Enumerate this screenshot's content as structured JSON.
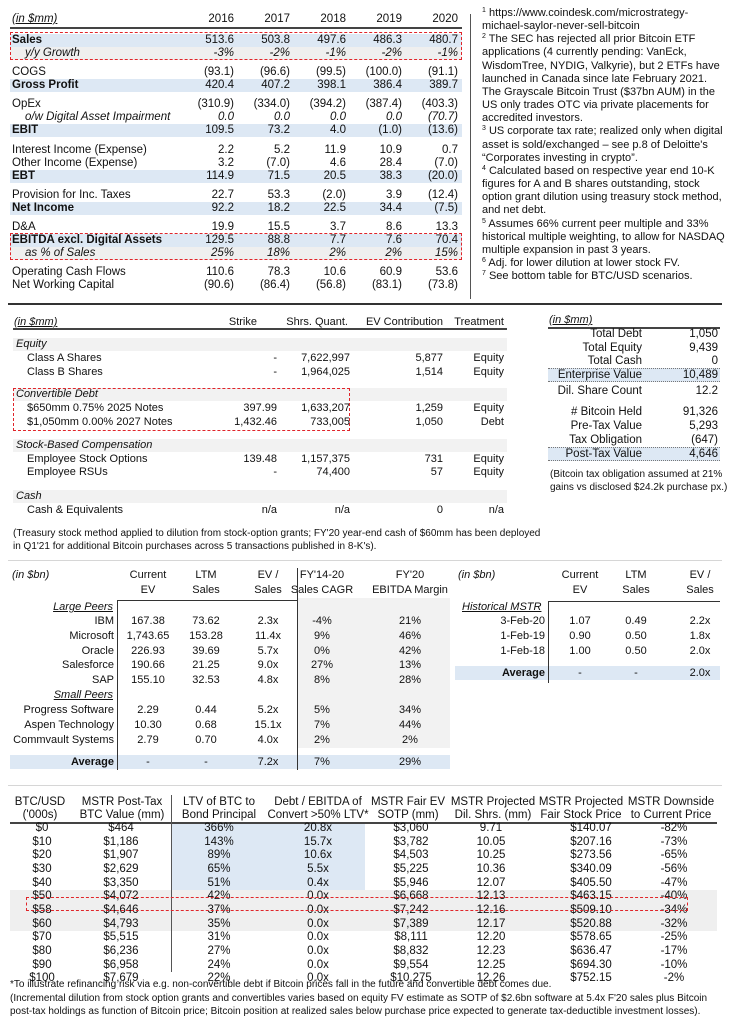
{
  "colors": {
    "highlight_box": "#e0252a",
    "blue_band": "#dde8f4",
    "grey_band": "#efefef"
  },
  "income": {
    "unit": "(in $mm)",
    "years": [
      "2016",
      "2017",
      "2018",
      "2019",
      "2020"
    ],
    "rows": [
      {
        "label": "Sales",
        "values": [
          "513.6",
          "503.8",
          "497.6",
          "486.3",
          "480.7"
        ]
      },
      {
        "label": "y/y Growth",
        "values": [
          "-3%",
          "-2%",
          "-1%",
          "-2%",
          "-1%"
        ]
      },
      {
        "label": "COGS",
        "values": [
          "(93.1)",
          "(96.6)",
          "(99.5)",
          "(100.0)",
          "(91.1)"
        ]
      },
      {
        "label": "Gross Profit",
        "values": [
          "420.4",
          "407.2",
          "398.1",
          "386.4",
          "389.7"
        ]
      },
      {
        "label": "OpEx",
        "values": [
          "(310.9)",
          "(334.0)",
          "(394.2)",
          "(387.4)",
          "(403.3)"
        ]
      },
      {
        "label": "o/w Digital Asset Impairment",
        "values": [
          "0.0",
          "0.0",
          "0.0",
          "0.0",
          "(70.7)"
        ]
      },
      {
        "label": "EBIT",
        "values": [
          "109.5",
          "73.2",
          "4.0",
          "(1.0)",
          "(13.6)"
        ]
      },
      {
        "label": "Interest Income (Expense)",
        "values": [
          "2.2",
          "5.2",
          "11.9",
          "10.9",
          "0.7"
        ]
      },
      {
        "label": "Other Income (Expense)",
        "values": [
          "3.2",
          "(7.0)",
          "4.6",
          "28.4",
          "(7.0)"
        ]
      },
      {
        "label": "EBT",
        "values": [
          "114.9",
          "71.5",
          "20.5",
          "38.3",
          "(20.0)"
        ]
      },
      {
        "label": "Provision for Inc. Taxes",
        "values": [
          "22.7",
          "53.3",
          "(2.0)",
          "3.9",
          "(12.4)"
        ]
      },
      {
        "label": "Net Income",
        "values": [
          "92.2",
          "18.2",
          "22.5",
          "34.4",
          "(7.5)"
        ]
      },
      {
        "label": "D&A",
        "values": [
          "19.9",
          "15.5",
          "3.7",
          "8.6",
          "13.3"
        ]
      },
      {
        "label": "EBITDA excl. Digital Assets",
        "values": [
          "129.5",
          "88.8",
          "7.7",
          "7.6",
          "70.4"
        ]
      },
      {
        "label": "as % of Sales",
        "values": [
          "25%",
          "18%",
          "2%",
          "2%",
          "15%"
        ]
      },
      {
        "label": "Operating Cash Flows",
        "values": [
          "110.6",
          "78.3",
          "10.6",
          "60.9",
          "53.6"
        ]
      },
      {
        "label": "Net Working Capital",
        "values": [
          "(90.6)",
          "(86.4)",
          "(56.8)",
          "(83.1)",
          "(73.8)"
        ]
      }
    ]
  },
  "footnotes": [
    {
      "num": "1",
      "text": "https://www.coindesk.com/microstrategy-michael-saylor-never-sell-bitcoin"
    },
    {
      "num": "2",
      "text": "The SEC has rejected all prior Bitcoin ETF applications (4 currently pending: VanEck, WisdomTree, NYDIG, Valkyrie), but 2 ETFs have launched in Canada since late February 2021. The Grayscale Bitcoin Trust ($37bn AUM) in the US only trades OTC via private placements for accredited investors."
    },
    {
      "num": "3",
      "text": "US corporate tax rate; realized only when digital asset is sold/exchanged – see p.8 of Deloitte's “Corporates investing in crypto”."
    },
    {
      "num": "4",
      "text": "Calculated based on respective year end 10-K figures for A and B shares outstanding, stock option grant dilution using treasury stock method, and net debt."
    },
    {
      "num": "5",
      "text": "Assumes 66% current peer multiple and 33% historical multiple weighting, to allow for NASDAQ multiple expansion in past 3 years."
    },
    {
      "num": "6",
      "text": "Adj. for lower dilution at lower stock FV."
    },
    {
      "num": "7",
      "text": "See bottom table for BTC/USD scenarios."
    }
  ],
  "captable": {
    "unit": "(in $mm)",
    "headers": [
      "Strike",
      "Shrs. Quant.",
      "EV Contribution",
      "Treatment"
    ],
    "groups": [
      {
        "title": "Equity",
        "rows": [
          {
            "label": "Class A Shares",
            "values": [
              "-",
              "7,622,997",
              "5,877",
              "Equity"
            ]
          },
          {
            "label": "Class B Shares",
            "values": [
              "-",
              "1,964,025",
              "1,514",
              "Equity"
            ]
          }
        ]
      },
      {
        "title": "Convertible Debt",
        "rows": [
          {
            "label": "$650mm 0.75% 2025 Notes",
            "values": [
              "397.99",
              "1,633,207",
              "1,259",
              "Equity"
            ]
          },
          {
            "label": "$1,050mm 0.00% 2027 Notes",
            "values": [
              "1,432.46",
              "733,005",
              "1,050",
              "Debt"
            ]
          }
        ]
      },
      {
        "title": "Stock-Based Compensation",
        "rows": [
          {
            "label": "Employee Stock Options",
            "values": [
              "139.48",
              "1,157,375",
              "731",
              "Equity"
            ]
          },
          {
            "label": "Employee RSUs",
            "values": [
              "-",
              "74,400",
              "57",
              "Equity"
            ]
          }
        ]
      },
      {
        "title": "Cash",
        "rows": [
          {
            "label": "Cash & Equivalents",
            "values": [
              "n/a",
              "n/a",
              "0",
              "n/a"
            ]
          }
        ]
      }
    ],
    "note_lines": [
      "(Treasury stock method applied to dilution from stock-option grants; FY'20 year-end cash of $60mm has been deployed",
      "in Q1'21 for additional Bitcoin purchases across 5 transactions published in 8-K's)."
    ]
  },
  "ev_summary": {
    "unit": "(in $mm)",
    "rows": [
      {
        "label": "Total Debt",
        "value": "1,050"
      },
      {
        "label": "Total Equity",
        "value": "9,439"
      },
      {
        "label": "Total Cash",
        "value": "0"
      },
      {
        "label": "Enterprise Value",
        "value": "10,489"
      },
      {
        "label": "Dil. Share Count",
        "value": "12.2"
      },
      {
        "label": "# Bitcoin Held",
        "value": "91,326"
      },
      {
        "label": "Pre-Tax Value",
        "value": "5,293"
      },
      {
        "label": "Tax Obligation",
        "value": "(647)"
      },
      {
        "label": "Post-Tax Value",
        "value": "4,646"
      }
    ],
    "note_lines": [
      "(Bitcoin tax obligation assumed at 21%",
      "gains vs disclosed $24.2k purchase px.)"
    ]
  },
  "peers": {
    "unit": "(in $bn)",
    "headers": [
      [
        "Current",
        "EV"
      ],
      [
        "LTM",
        "Sales"
      ],
      [
        "EV /",
        "Sales"
      ],
      [
        "FY'14-20",
        "Sales CAGR"
      ],
      [
        "FY'20",
        "EBITDA Margin"
      ]
    ],
    "groups": [
      {
        "title": "Large Peers",
        "rows": [
          {
            "name": "IBM",
            "values": [
              "167.38",
              "73.62",
              "2.3x",
              "-4%",
              "21%"
            ]
          },
          {
            "name": "Microsoft",
            "values": [
              "1,743.65",
              "153.28",
              "11.4x",
              "9%",
              "46%"
            ]
          },
          {
            "name": "Oracle",
            "values": [
              "226.93",
              "39.69",
              "5.7x",
              "0%",
              "42%"
            ]
          },
          {
            "name": "Salesforce",
            "values": [
              "190.66",
              "21.25",
              "9.0x",
              "27%",
              "13%"
            ]
          },
          {
            "name": "SAP",
            "values": [
              "155.10",
              "32.53",
              "4.8x",
              "8%",
              "28%"
            ]
          }
        ]
      },
      {
        "title": "Small Peers",
        "rows": [
          {
            "name": "Progress Software",
            "values": [
              "2.29",
              "0.44",
              "5.2x",
              "5%",
              "34%"
            ]
          },
          {
            "name": "Aspen Technology",
            "values": [
              "10.30",
              "0.68",
              "15.1x",
              "7%",
              "44%"
            ]
          },
          {
            "name": "Commvault Systems",
            "values": [
              "2.79",
              "0.70",
              "4.0x",
              "2%",
              "2%"
            ]
          }
        ]
      }
    ],
    "average": {
      "label": "Average",
      "values": [
        "-",
        "-",
        "7.2x",
        "7%",
        "29%"
      ]
    }
  },
  "historical": {
    "unit": "(in $bn)",
    "headers": [
      [
        "Current",
        "EV"
      ],
      [
        "LTM",
        "Sales"
      ],
      [
        "EV /",
        "Sales"
      ]
    ],
    "title": "Historical MSTR",
    "rows": [
      {
        "name": "3-Feb-20",
        "values": [
          "1.07",
          "0.49",
          "2.2x"
        ]
      },
      {
        "name": "1-Feb-19",
        "values": [
          "0.90",
          "0.50",
          "1.8x"
        ]
      },
      {
        "name": "1-Feb-18",
        "values": [
          "1.00",
          "0.50",
          "2.0x"
        ]
      }
    ],
    "average": {
      "label": "Average",
      "values": [
        "-",
        "-",
        "2.0x"
      ]
    }
  },
  "scenarios": {
    "headers": [
      [
        "BTC/USD",
        "('000s)"
      ],
      [
        "MSTR Post-Tax",
        "BTC Value (mm)"
      ],
      [
        "LTV of BTC to",
        "Bond Principal"
      ],
      [
        "Debt / EBITDA of",
        "Convert >50% LTV*"
      ],
      [
        "MSTR Fair EV",
        "SOTP (mm)"
      ],
      [
        "MSTR Projected",
        "Dil. Shrs. (mm)"
      ],
      [
        "MSTR Projected",
        "Fair Stock Price"
      ],
      [
        "MSTR Downside",
        "to Current Price"
      ]
    ],
    "rows": [
      [
        "$0",
        "$464",
        "366%",
        "20.8x",
        "$3,060",
        "9.71",
        "$140.07",
        "-82%"
      ],
      [
        "$10",
        "$1,186",
        "143%",
        "15.7x",
        "$3,782",
        "10.05",
        "$207.16",
        "-73%"
      ],
      [
        "$20",
        "$1,907",
        "89%",
        "10.6x",
        "$4,503",
        "10.25",
        "$273.56",
        "-65%"
      ],
      [
        "$30",
        "$2,629",
        "65%",
        "5.5x",
        "$5,225",
        "10.36",
        "$340.09",
        "-56%"
      ],
      [
        "$40",
        "$3,350",
        "51%",
        "0.4x",
        "$5,946",
        "12.07",
        "$405.50",
        "-47%"
      ],
      [
        "$50",
        "$4,072",
        "42%",
        "0.0x",
        "$6,668",
        "12.13",
        "$463.15",
        "-40%"
      ],
      [
        "$58",
        "$4,646",
        "37%",
        "0.0x",
        "$7,242",
        "12.16",
        "$509.10",
        "-34%"
      ],
      [
        "$60",
        "$4,793",
        "35%",
        "0.0x",
        "$7,389",
        "12.17",
        "$520.88",
        "-32%"
      ],
      [
        "$70",
        "$5,515",
        "31%",
        "0.0x",
        "$8,111",
        "12.20",
        "$578.65",
        "-25%"
      ],
      [
        "$80",
        "$6,236",
        "27%",
        "0.0x",
        "$8,832",
        "12.23",
        "$636.47",
        "-17%"
      ],
      [
        "$90",
        "$6,958",
        "24%",
        "0.0x",
        "$9,554",
        "12.25",
        "$694.30",
        "-10%"
      ],
      [
        "$100",
        "$7,679",
        "22%",
        "0.0x",
        "$10,275",
        "12.26",
        "$752.15",
        "-2%"
      ]
    ],
    "notes": [
      "*To illustrate refinancing risk via e.g. non-convertible debt if Bitcoin prices fall in the future and convertible debt comes due.",
      "(Incremental dilution from stock option grants and convertibles varies based on equity FV estimate as SOTP of $2.6bn software at 5.4x F'20 sales plus Bitcoin",
      "post-tax holdings as function of Bitcoin price; Bitcoin position at realized sales below purchase price expected to generate tax-deductible investment losses)."
    ]
  }
}
